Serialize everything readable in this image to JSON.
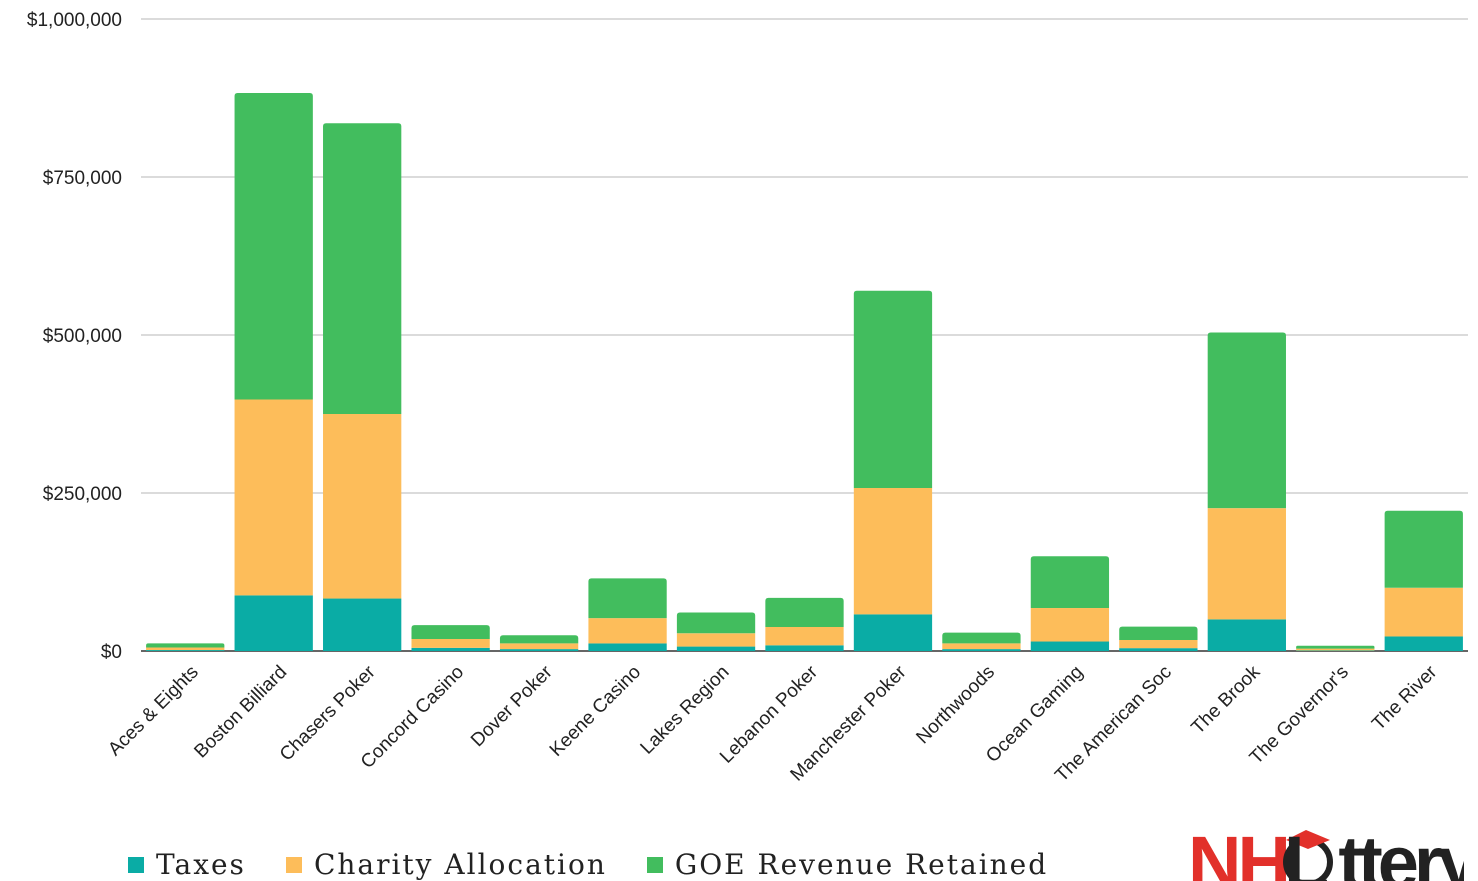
{
  "chart_data": {
    "type": "bar",
    "stacked": true,
    "categories": [
      "Aces & Eights",
      "Boston Billiard",
      "Chasers Poker",
      "Concord Casino",
      "Dover Poker",
      "Keene Casino",
      "Lakes Region",
      "Lebanon Poker",
      "Manchester Poker",
      "Northwoods",
      "Ocean Gaming",
      "The American Soc",
      "The Brook",
      "The Governor's",
      "The River"
    ],
    "series": [
      {
        "name": "Taxes",
        "color": "#0aaca5",
        "values": [
          1500,
          88000,
          83000,
          5000,
          3000,
          12000,
          7000,
          9000,
          58000,
          3000,
          15000,
          4500,
          50000,
          800,
          23000
        ]
      },
      {
        "name": "Charity Allocation",
        "color": "#fdbd5a",
        "values": [
          4000,
          310000,
          292000,
          14000,
          9000,
          40000,
          21000,
          29000,
          200000,
          9000,
          53000,
          13000,
          176000,
          3000,
          77000
        ]
      },
      {
        "name": "GOE Revenue Retained",
        "color": "#42bd5e",
        "values": [
          6500,
          485000,
          460000,
          22000,
          13000,
          63000,
          33000,
          46000,
          312000,
          17000,
          82000,
          21000,
          278000,
          4500,
          122000
        ]
      }
    ],
    "y_ticks": [
      "$0",
      "$250,000",
      "$500,000",
      "$750,000",
      "$1,000,000"
    ],
    "ylim": [
      0,
      1000000
    ],
    "grid": true,
    "legend_position": "bottom-left"
  },
  "logo": {
    "text": "NHLottery"
  }
}
